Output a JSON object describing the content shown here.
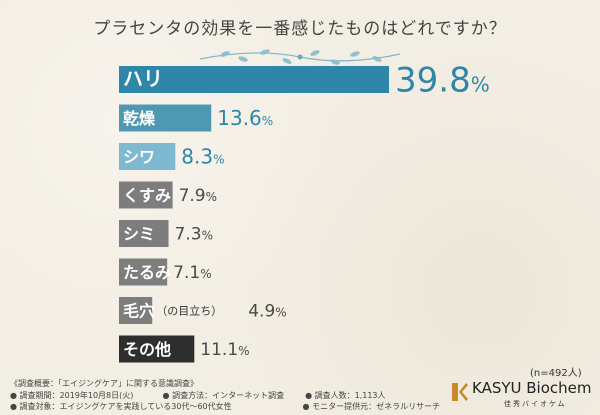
{
  "chart_data": {
    "type": "bar",
    "orientation": "horizontal",
    "title": "プラセンタの効果を一番感じたものはどれですか？",
    "categories": [
      "ハリ",
      "乾燥",
      "シワ",
      "くすみ",
      "シミ",
      "たるみ",
      "毛穴",
      "その他"
    ],
    "category_notes": [
      "",
      "",
      "",
      "",
      "",
      "",
      "（の目立ち）",
      ""
    ],
    "values": [
      39.8,
      13.6,
      8.3,
      7.9,
      7.3,
      7.1,
      4.9,
      11.1
    ],
    "unit": "%",
    "xlim": [
      0,
      39.8
    ],
    "grid": false,
    "legend": "none",
    "sample_size": "(n=492人)"
  },
  "colors": {
    "highlight_bar": "#2e86a8",
    "second_bar": "#4f98b3",
    "third_bar": "#7fb8d1",
    "muted_bar": "#7d7d7d",
    "dark_bar": "#2e2e2e",
    "highlight_value": "#2e86a8",
    "muted_value": "#4a4a4a"
  },
  "footer": {
    "lines": [
      [
        "《調査概要：「エイジングケア」に関する意識調査》"
      ],
      [
        "● 調査期間：2019年10月8日(火)",
        "● 調査方法：インターネット調査",
        "● 調査人数：1,113人"
      ],
      [
        "● 調査対象：エイジングケアを実践している30代〜60代女性",
        "● モニター提供元：ゼネラルリサーチ"
      ]
    ]
  },
  "brand": {
    "name": "KASYU Biochem",
    "subtitle": "佳秀バイオケム"
  }
}
